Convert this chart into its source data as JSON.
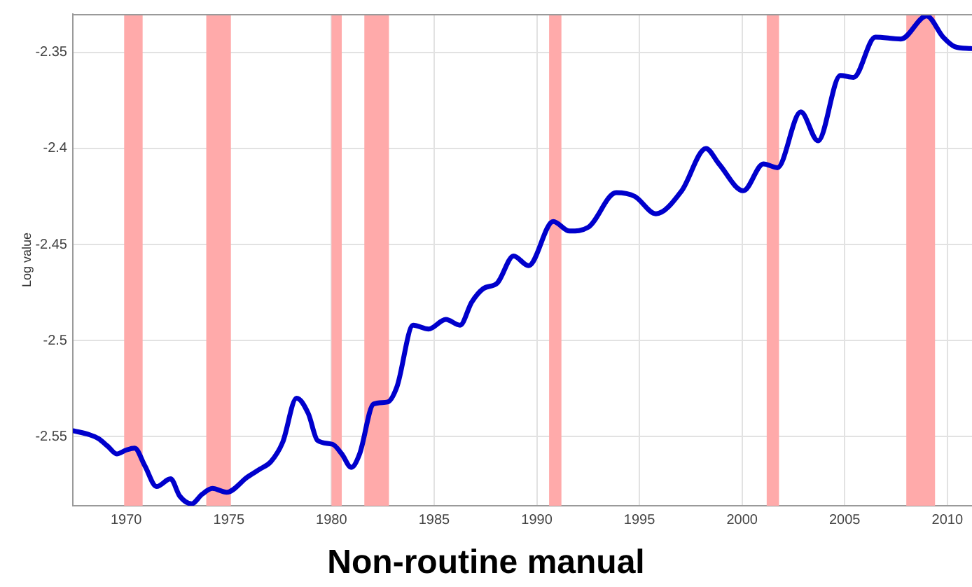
{
  "chart_data": {
    "type": "line",
    "title": "Non-routine manual",
    "ylabel": "Log value",
    "series": [
      {
        "color": "#0000cc",
        "x": [
          1967.45,
          1968.2,
          1968.64,
          1969.1,
          1969.54,
          1970.0,
          1970.41,
          1970.9,
          1971.48,
          1972.16,
          1972.61,
          1973.18,
          1973.7,
          1974.2,
          1974.89,
          1975.91,
          1976.5,
          1977.05,
          1977.62,
          1978.3,
          1978.87,
          1979.32,
          1980.05,
          1980.5,
          1980.96,
          1981.37,
          1982.05,
          1982.73,
          1983.19,
          1983.98,
          1984.73,
          1985.57,
          1986.26,
          1986.83,
          1987.39,
          1988.08,
          1988.87,
          1989.6,
          1990.8,
          1991.6,
          1992.51,
          1993.87,
          1994.78,
          1995.8,
          1997.06,
          1998.24,
          1998.87,
          2000.06,
          2001.04,
          2001.72,
          2002.86,
          2003.7,
          2004.79,
          2005.43,
          2006.49,
          2007.74,
          2008.99,
          2009.79,
          2010.36,
          2011.15
        ],
        "values": [
          -2.547,
          -2.549,
          -2.551,
          -2.555,
          -2.559,
          -2.557,
          -2.556,
          -2.565,
          -2.576,
          -2.572,
          -2.581,
          -2.585,
          -2.58,
          -2.577,
          -2.579,
          -2.571,
          -2.567,
          -2.563,
          -2.553,
          -2.53,
          -2.538,
          -2.552,
          -2.554,
          -2.559,
          -2.566,
          -2.559,
          -2.533,
          -2.532,
          -2.524,
          -2.492,
          -2.494,
          -2.489,
          -2.492,
          -2.48,
          -2.473,
          -2.47,
          -2.456,
          -2.461,
          -2.438,
          -2.443,
          -2.441,
          -2.423,
          -2.425,
          -2.434,
          -2.422,
          -2.4,
          -2.408,
          -2.422,
          -2.408,
          -2.41,
          -2.381,
          -2.396,
          -2.362,
          -2.363,
          -2.342,
          -2.343,
          -2.331,
          -2.342,
          -2.347,
          -2.348
        ]
      }
    ],
    "xlim": [
      1967.4,
      2011.2
    ],
    "xticks": [
      1970,
      1975,
      1980,
      1985,
      1990,
      1995,
      2000,
      2005,
      2010
    ],
    "ylim": [
      -2.586,
      -2.33
    ],
    "yticks": [
      -2.55,
      -2.5,
      -2.45,
      -2.4,
      -2.35
    ],
    "bands": [
      {
        "axis": "x",
        "from": 1969.9,
        "to": 1970.8,
        "color": "#ffaaaa"
      },
      {
        "axis": "x",
        "from": 1973.9,
        "to": 1975.1,
        "color": "#ffaaaa"
      },
      {
        "axis": "x",
        "from": 1980.0,
        "to": 1980.5,
        "color": "#ffaaaa"
      },
      {
        "axis": "x",
        "from": 1981.6,
        "to": 1982.8,
        "color": "#ffaaaa"
      },
      {
        "axis": "x",
        "from": 1990.6,
        "to": 1991.2,
        "color": "#ffaaaa"
      },
      {
        "axis": "x",
        "from": 2001.2,
        "to": 2001.8,
        "color": "#ffaaaa"
      },
      {
        "axis": "x",
        "from": 2008.0,
        "to": 2009.4,
        "color": "#ffaaaa"
      }
    ],
    "grid": true,
    "legend": false,
    "marker": "none",
    "line_style": "solid"
  }
}
